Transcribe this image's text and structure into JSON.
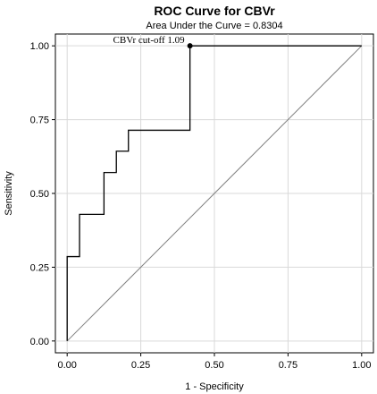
{
  "chart_data": {
    "type": "line",
    "title": "ROC Curve for CBVr",
    "subtitle": "Area Under the Curve = 0.8304",
    "xlabel": "1 - Specificity",
    "ylabel": "Sensitivity",
    "xlim": [
      -0.04,
      1.04
    ],
    "ylim": [
      -0.04,
      1.04
    ],
    "xticks": [
      0.0,
      0.25,
      0.5,
      0.75,
      1.0
    ],
    "yticks": [
      0.0,
      0.25,
      0.5,
      0.75,
      1.0
    ],
    "xtick_labels": [
      "0.00",
      "0.25",
      "0.50",
      "0.75",
      "1.00"
    ],
    "ytick_labels": [
      "0.00",
      "0.25",
      "0.50",
      "0.75",
      "1.00"
    ],
    "grid": true,
    "series": [
      {
        "x": [
          0.0,
          0.0,
          0.042,
          0.042,
          0.125,
          0.125,
          0.167,
          0.167,
          0.208,
          0.208,
          0.417,
          0.417,
          1.0
        ],
        "y": [
          0.0,
          0.286,
          0.286,
          0.429,
          0.429,
          0.571,
          0.571,
          0.643,
          0.643,
          0.714,
          0.714,
          1.0,
          1.0
        ],
        "color": "#000000"
      },
      {
        "x": [
          0.0,
          1.0
        ],
        "y": [
          0.0,
          1.0
        ],
        "color": "#808080"
      }
    ],
    "cutoff_point": {
      "x": 0.417,
      "y": 1.0,
      "label": "CBVr cut-off 1.09"
    }
  }
}
